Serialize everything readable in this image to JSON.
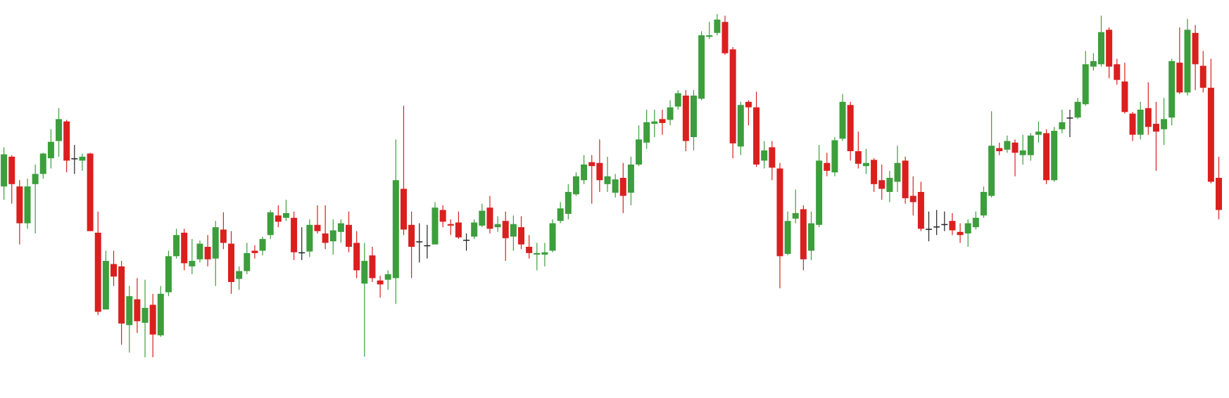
{
  "chart_data": {
    "type": "candlestick",
    "ylim": [
      0,
      508
    ],
    "up_color": "#3c9e3c",
    "down_color": "#da1f1f",
    "flat_color": "#222222",
    "open": [
      270,
      308,
      270,
      223,
      273,
      286,
      306,
      328,
      353,
      306,
      303,
      312,
      211,
      113,
      171,
      168,
      93,
      126,
      96,
      119,
      80,
      135,
      181,
      211,
      168,
      177,
      193,
      178,
      215,
      197,
      152,
      162,
      188,
      188,
      208,
      233,
      230,
      230,
      186,
      187,
      221,
      210,
      200,
      212,
      221,
      198,
      146,
      182,
      150,
      151,
      153,
      267,
      221,
      200,
      195,
      196,
      240,
      222,
      224,
      202,
      206,
      220,
      243,
      218,
      226,
      206,
      218,
      193,
      183,
      183,
      188,
      226,
      235,
      260,
      278,
      301,
      300,
      273,
      262,
      281,
      262,
      298,
      326,
      350,
      356,
      355,
      372,
      386,
      333,
      382,
      461,
      466,
      480,
      445,
      321,
      378,
      371,
      303,
      320,
      293,
      184,
      229,
      241,
      188,
      221,
      300,
      288,
      331,
      374,
      315,
      296,
      304,
      278,
      263,
      276,
      303,
      258,
      263,
      216,
      219,
      222,
      226,
      212,
      210,
      218,
      233,
      258,
      319,
      317,
      326,
      310,
      310,
      336,
      338,
      278,
      343,
      358,
      358,
      375,
      423,
      426,
      470,
      426,
      404,
      363,
      336,
      370,
      350,
      343,
      358,
      428,
      390,
      466,
      424,
      396,
      281
    ],
    "high": [
      320,
      310,
      278,
      280,
      298,
      313,
      343,
      370,
      355,
      323,
      312,
      313,
      238,
      188,
      188,
      175,
      143,
      153,
      151,
      133,
      143,
      188,
      216,
      216,
      203,
      201,
      208,
      226,
      237,
      213,
      168,
      198,
      195,
      206,
      240,
      246,
      253,
      238,
      218,
      228,
      246,
      246,
      228,
      228,
      238,
      213,
      198,
      193,
      156,
      163,
      330,
      373,
      238,
      223,
      221,
      250,
      246,
      228,
      238,
      210,
      228,
      248,
      258,
      232,
      238,
      233,
      232,
      208,
      198,
      198,
      228,
      250,
      273,
      288,
      310,
      310,
      330,
      308,
      286,
      300,
      308,
      348,
      368,
      368,
      368,
      380,
      393,
      393,
      393,
      468,
      480,
      490,
      488,
      448,
      378,
      380,
      391,
      328,
      328,
      300,
      238,
      266,
      246,
      238,
      323,
      313,
      333,
      388,
      378,
      340,
      318,
      306,
      298,
      290,
      322,
      308,
      283,
      276,
      238,
      240,
      238,
      236,
      223,
      228,
      238,
      270,
      366,
      326,
      335,
      330,
      336,
      338,
      353,
      343,
      346,
      368,
      368,
      383,
      443,
      440,
      488,
      473,
      433,
      428,
      365,
      378,
      403,
      378,
      383,
      433,
      473,
      484,
      476,
      443,
      433,
      308
    ],
    "low": [
      253,
      248,
      196,
      216,
      210,
      280,
      293,
      308,
      288,
      286,
      290,
      213,
      106,
      113,
      143,
      68,
      58,
      83,
      52,
      52,
      78,
      130,
      178,
      163,
      158,
      173,
      168,
      143,
      190,
      133,
      138,
      158,
      178,
      182,
      203,
      218,
      226,
      176,
      176,
      180,
      210,
      190,
      183,
      198,
      186,
      153,
      53,
      148,
      128,
      138,
      120,
      208,
      153,
      173,
      178,
      196,
      218,
      208,
      203,
      188,
      203,
      218,
      210,
      212,
      175,
      188,
      190,
      178,
      163,
      168,
      186,
      223,
      228,
      258,
      273,
      248,
      263,
      263,
      256,
      236,
      246,
      296,
      318,
      333,
      336,
      348,
      368,
      315,
      316,
      380,
      458,
      463,
      438,
      306,
      310,
      348,
      295,
      293,
      278,
      140,
      182,
      223,
      163,
      176,
      218,
      283,
      283,
      328,
      303,
      293,
      286,
      263,
      253,
      250,
      263,
      248,
      233,
      213,
      200,
      208,
      213,
      208,
      198,
      193,
      215,
      230,
      256,
      310,
      313,
      283,
      298,
      303,
      326,
      273,
      276,
      338,
      333,
      356,
      373,
      418,
      423,
      408,
      400,
      363,
      328,
      330,
      336,
      290,
      323,
      348,
      388,
      386,
      393,
      390,
      274,
      228
    ],
    "close": [
      311,
      273,
      223,
      270,
      286,
      312,
      327,
      356,
      303,
      306,
      308,
      213,
      110,
      175,
      155,
      95,
      130,
      98,
      115,
      81,
      133,
      181,
      208,
      172,
      175,
      197,
      177,
      218,
      198,
      148,
      162,
      185,
      185,
      203,
      237,
      225,
      236,
      186,
      186,
      221,
      213,
      198,
      214,
      223,
      193,
      163,
      175,
      153,
      145,
      158,
      278,
      215,
      193,
      200,
      195,
      243,
      225,
      220,
      205,
      202,
      224,
      239,
      216,
      222,
      204,
      222,
      196,
      185,
      185,
      186,
      223,
      242,
      263,
      283,
      298,
      296,
      278,
      283,
      279,
      258,
      298,
      330,
      352,
      353,
      351,
      371,
      389,
      328,
      386,
      463,
      463,
      483,
      440,
      325,
      374,
      371,
      298,
      316,
      294,
      181,
      226,
      236,
      177,
      223,
      303,
      290,
      329,
      378,
      315,
      299,
      300,
      273,
      267,
      281,
      300,
      255,
      250,
      216,
      216,
      219,
      222,
      214,
      208,
      223,
      230,
      263,
      322,
      315,
      328,
      313,
      316,
      335,
      340,
      278,
      341,
      352,
      358,
      378,
      426,
      430,
      467,
      423,
      406,
      365,
      336,
      368,
      346,
      340,
      356,
      430,
      390,
      470,
      426,
      396,
      276,
      240
    ]
  }
}
